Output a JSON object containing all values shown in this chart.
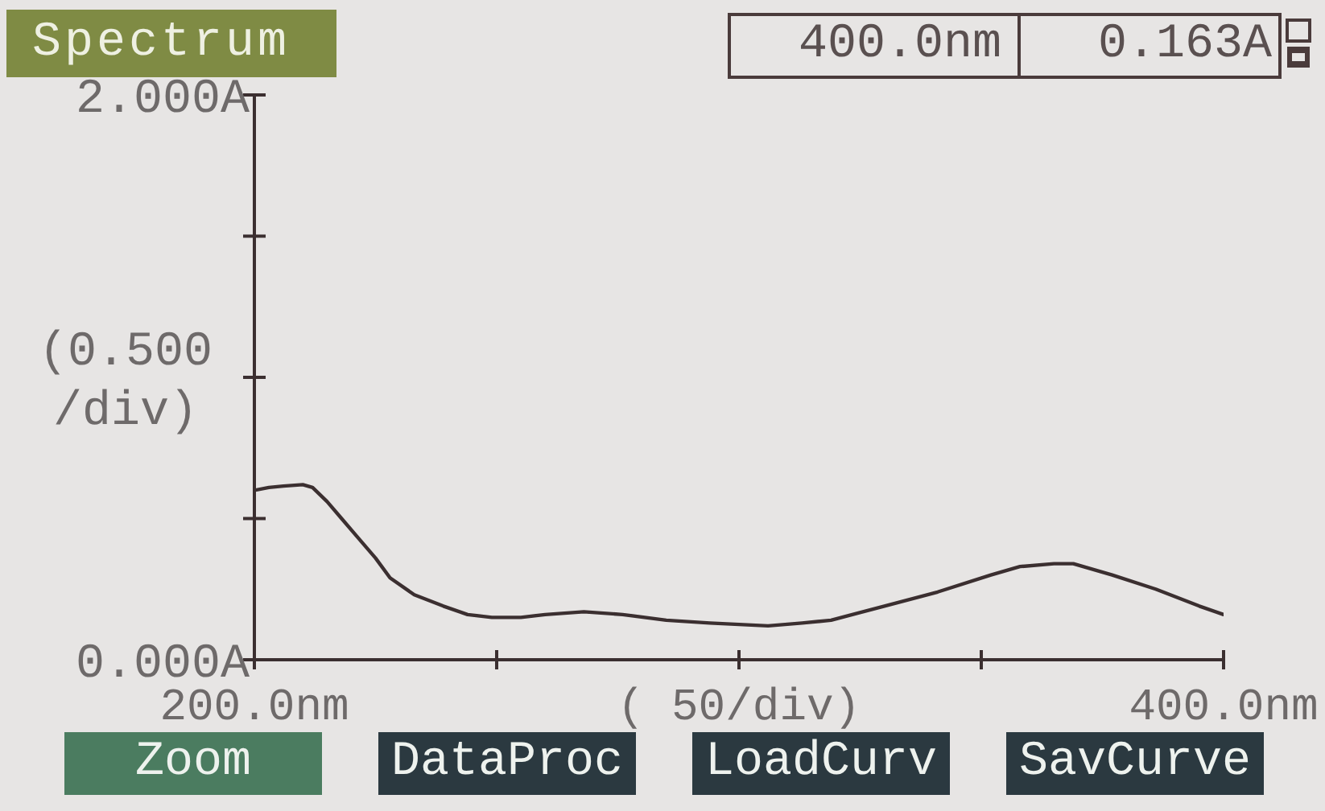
{
  "chart_data": {
    "type": "line",
    "title": "Spectrum",
    "xlabel": "( 50/div)",
    "ylabel": "(0.500 /div)",
    "annotations": [
      "400.0nm",
      "0.163A",
      "Zoom",
      "DataProc",
      "LoadCurv",
      "SavCurve"
    ],
    "x": [
      200,
      203,
      206,
      210,
      212,
      215,
      218,
      221,
      225,
      228,
      233,
      239,
      244,
      249,
      255,
      260,
      268,
      276,
      285,
      294,
      306,
      313,
      319,
      330,
      341,
      352,
      358,
      365,
      369,
      377,
      386,
      395,
      400
    ],
    "values": [
      0.6,
      0.61,
      0.615,
      0.62,
      0.61,
      0.56,
      0.5,
      0.44,
      0.36,
      0.29,
      0.23,
      0.19,
      0.16,
      0.15,
      0.15,
      0.16,
      0.17,
      0.16,
      0.14,
      0.13,
      0.12,
      0.13,
      0.14,
      0.19,
      0.24,
      0.3,
      0.33,
      0.34,
      0.34,
      0.3,
      0.25,
      0.19,
      0.16
    ],
    "color": "#3b2f30",
    "xlim": [
      200,
      400
    ],
    "xticks": [
      {
        "value": 200,
        "label": "200.0nm"
      },
      {
        "value": 250,
        "label": null
      },
      {
        "value": 300,
        "label": null
      },
      {
        "value": 350,
        "label": null
      },
      {
        "value": 400,
        "label": "400.0nm"
      }
    ],
    "ylim": [
      0,
      2
    ],
    "yticks": [
      {
        "value": 0,
        "label": "0.000A"
      },
      {
        "value": 0.5,
        "label": null
      },
      {
        "value": 1,
        "label": null
      },
      {
        "value": 1.5,
        "label": null
      },
      {
        "value": 2,
        "label": "2.000A"
      }
    ]
  }
}
